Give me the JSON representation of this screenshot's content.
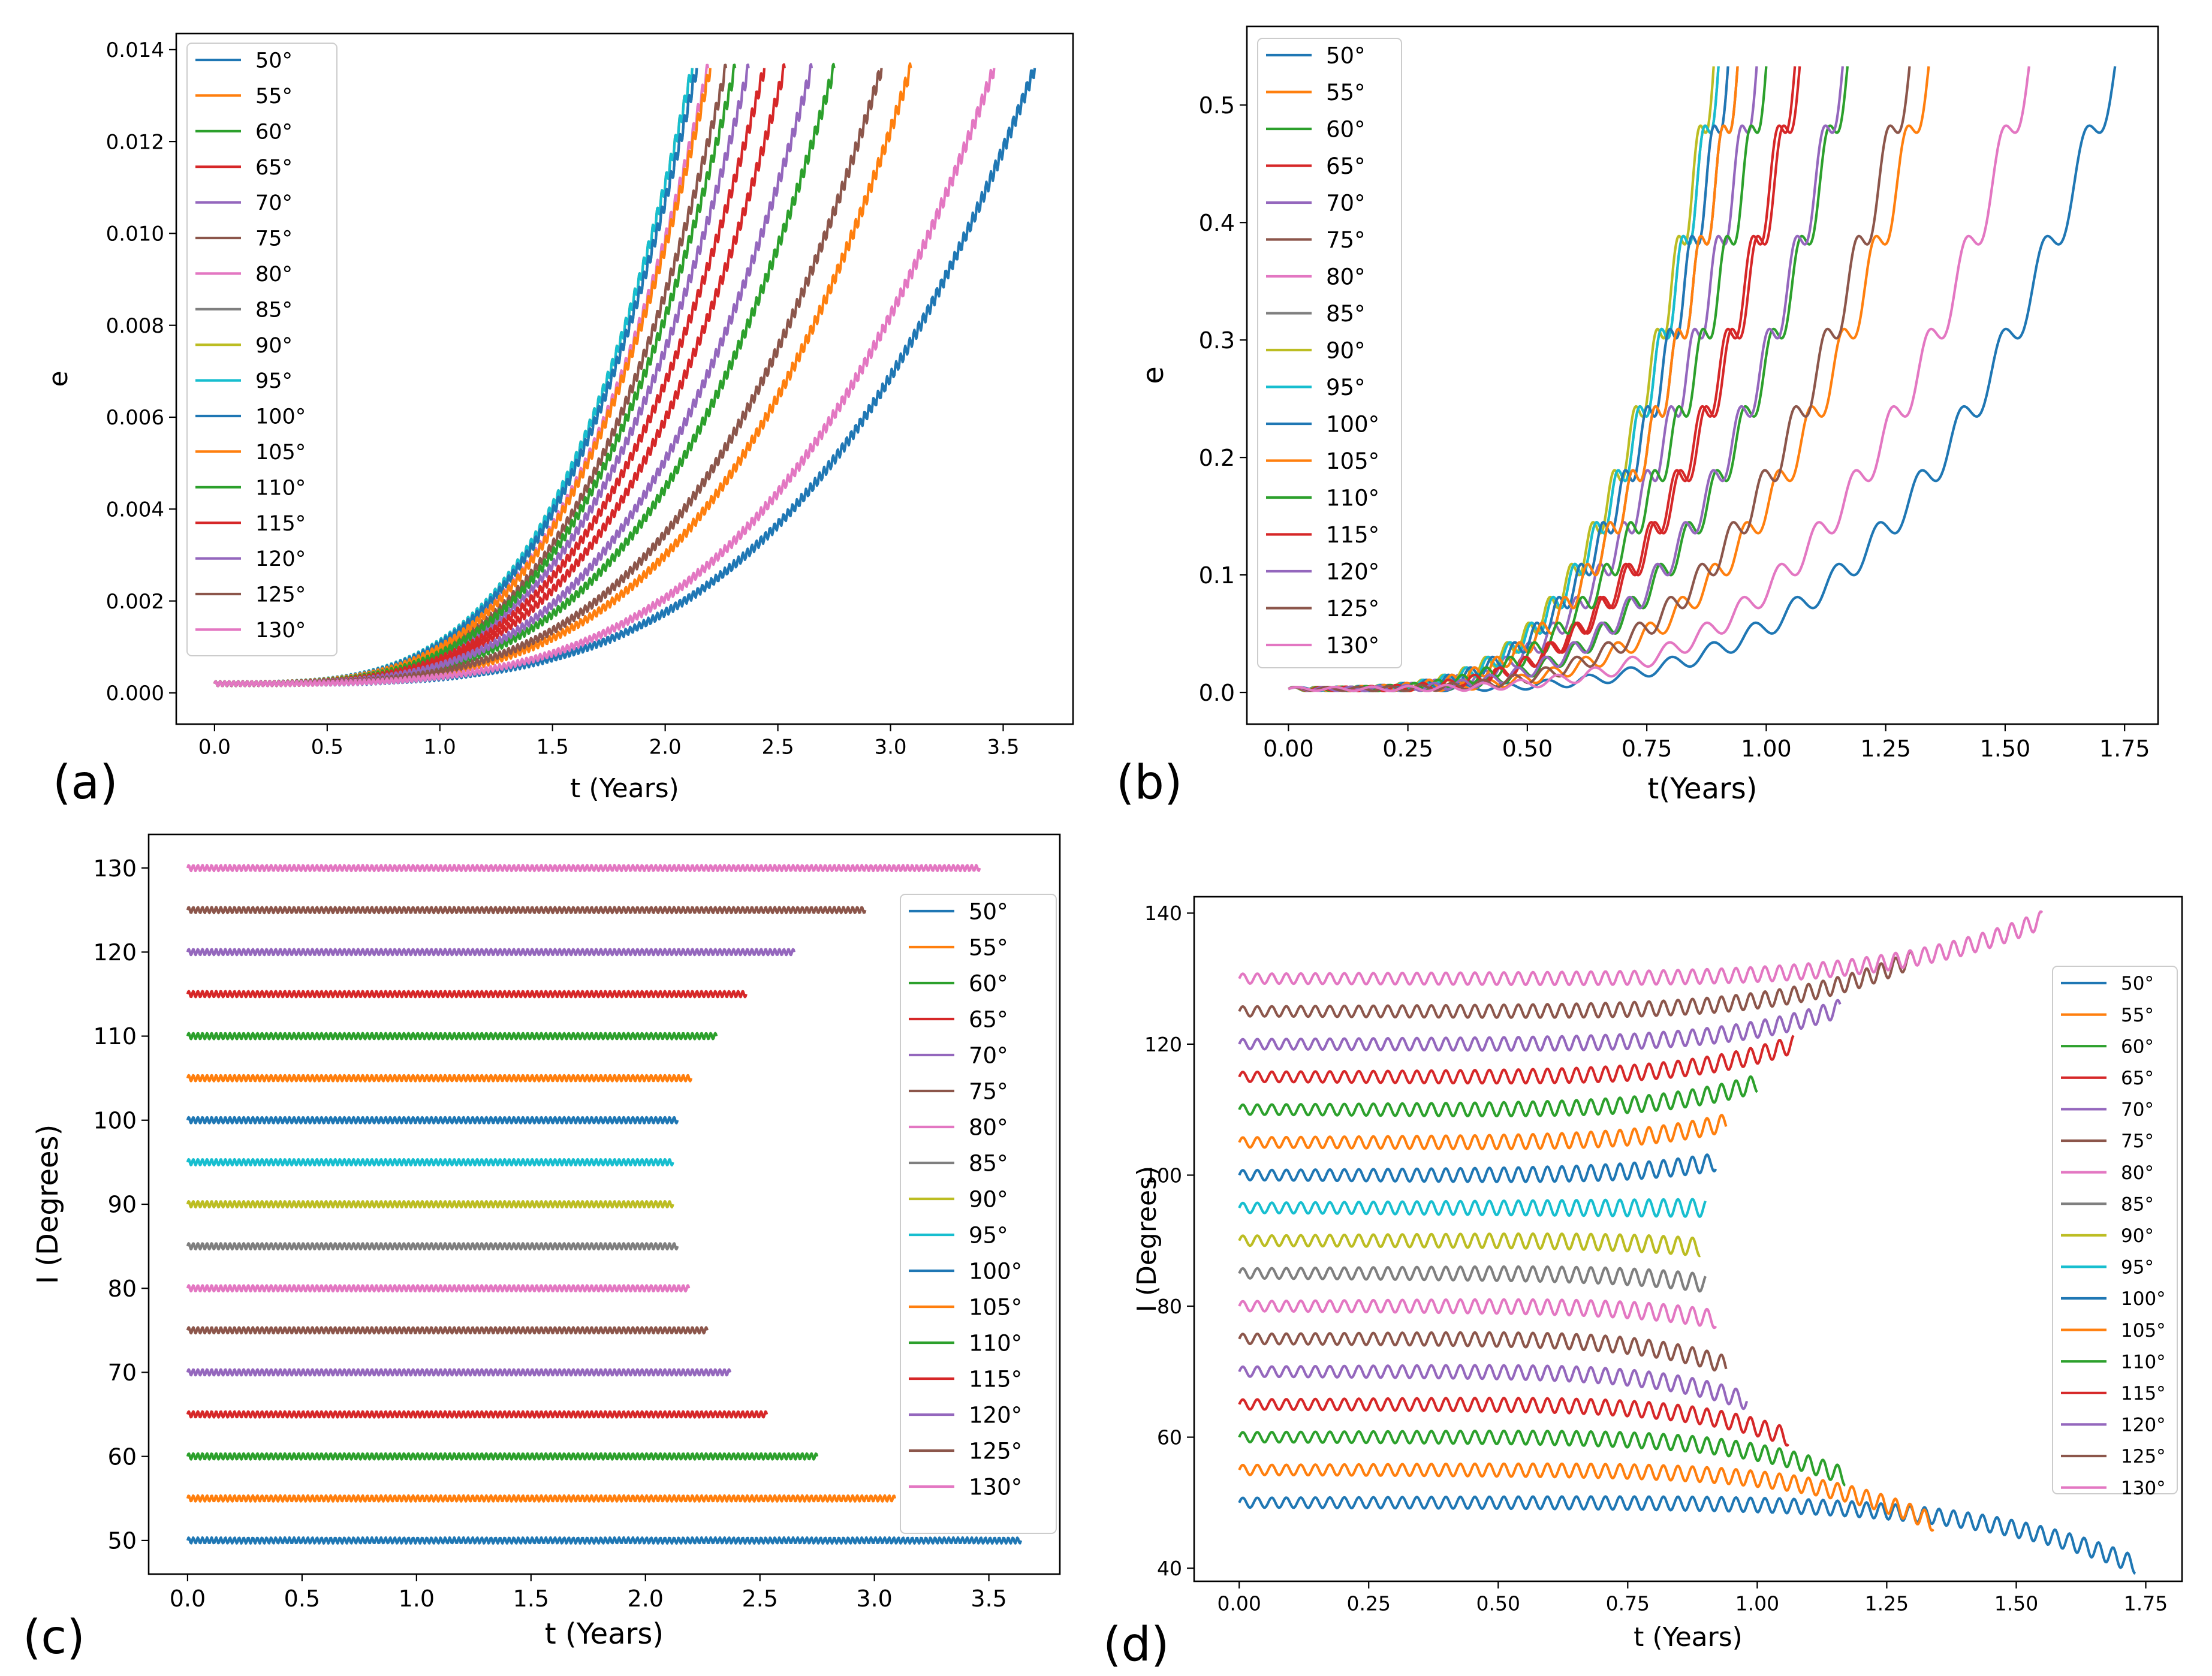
{
  "legend_labels": [
    "50°",
    "55°",
    "60°",
    "65°",
    "70°",
    "75°",
    "80°",
    "85°",
    "90°",
    "95°",
    "100°",
    "105°",
    "110°",
    "115°",
    "120°",
    "125°",
    "130°"
  ],
  "colors": [
    "#1f77b4",
    "#ff7f0e",
    "#2ca02c",
    "#d62728",
    "#9467bd",
    "#8c564b",
    "#e377c2",
    "#7f7f7f",
    "#bcbd22",
    "#17becf"
  ],
  "chart_data": [
    {
      "panel": "(a)",
      "type": "line",
      "title": "",
      "xlabel": "t (Years)",
      "ylabel": "e",
      "xlim": [
        -0.17,
        3.81
      ],
      "ylim": [
        -0.00068,
        0.01435
      ],
      "xticks": [
        0.0,
        0.5,
        1.0,
        1.5,
        2.0,
        2.5,
        3.0,
        3.5
      ],
      "xtick_labels": [
        "0.0",
        "0.5",
        "1.0",
        "1.5",
        "2.0",
        "2.5",
        "3.0",
        "3.5"
      ],
      "yticks": [
        0.0,
        0.002,
        0.004,
        0.006,
        0.008,
        0.01,
        0.012,
        0.014
      ],
      "ytick_labels": [
        "0.000",
        "0.002",
        "0.004",
        "0.006",
        "0.008",
        "0.010",
        "0.012",
        "0.014"
      ],
      "legend_position": "upper-left",
      "series_model": "e(t) = 0.0002 + 0.0134 * (t/t_end)^3.6",
      "e_end": 0.0136,
      "series": [
        {
          "name": "50°",
          "t_end": 3.64
        },
        {
          "name": "55°",
          "t_end": 3.09
        },
        {
          "name": "60°",
          "t_end": 2.75
        },
        {
          "name": "65°",
          "t_end": 2.53
        },
        {
          "name": "70°",
          "t_end": 2.37
        },
        {
          "name": "75°",
          "t_end": 2.27
        },
        {
          "name": "80°",
          "t_end": 2.19
        },
        {
          "name": "85°",
          "t_end": 2.14
        },
        {
          "name": "90°",
          "t_end": 2.12
        },
        {
          "name": "95°",
          "t_end": 2.12
        },
        {
          "name": "100°",
          "t_end": 2.14
        },
        {
          "name": "105°",
          "t_end": 2.2
        },
        {
          "name": "110°",
          "t_end": 2.31
        },
        {
          "name": "115°",
          "t_end": 2.44
        },
        {
          "name": "120°",
          "t_end": 2.65
        },
        {
          "name": "125°",
          "t_end": 2.96
        },
        {
          "name": "130°",
          "t_end": 3.46
        }
      ]
    },
    {
      "panel": "(b)",
      "type": "line",
      "title": "",
      "xlabel": "t(Years)",
      "ylabel": "e",
      "xlim": [
        -0.087,
        1.82
      ],
      "ylim": [
        -0.027,
        0.567
      ],
      "xticks": [
        0.0,
        0.25,
        0.5,
        0.75,
        1.0,
        1.25,
        1.5,
        1.75
      ],
      "xtick_labels": [
        "0.00",
        "0.25",
        "0.50",
        "0.75",
        "1.00",
        "1.25",
        "1.50",
        "1.75"
      ],
      "yticks": [
        0.0,
        0.1,
        0.2,
        0.3,
        0.4,
        0.5
      ],
      "ytick_labels": [
        "0.0",
        "0.1",
        "0.2",
        "0.3",
        "0.4",
        "0.5"
      ],
      "legend_position": "upper-left",
      "series_model": "e(t) = 0.53 * (t/t_end)^4.2 + oscillation",
      "e_end": 0.53,
      "series": [
        {
          "name": "50°",
          "t_end": 1.73
        },
        {
          "name": "55°",
          "t_end": 1.34
        },
        {
          "name": "60°",
          "t_end": 1.17
        },
        {
          "name": "65°",
          "t_end": 1.06
        },
        {
          "name": "70°",
          "t_end": 0.98
        },
        {
          "name": "75°",
          "t_end": 0.94
        },
        {
          "name": "80°",
          "t_end": 0.92
        },
        {
          "name": "85°",
          "t_end": 0.9
        },
        {
          "name": "90°",
          "t_end": 0.89
        },
        {
          "name": "95°",
          "t_end": 0.9
        },
        {
          "name": "100°",
          "t_end": 0.92
        },
        {
          "name": "105°",
          "t_end": 0.94
        },
        {
          "name": "110°",
          "t_end": 1.0
        },
        {
          "name": "115°",
          "t_end": 1.07
        },
        {
          "name": "120°",
          "t_end": 1.16
        },
        {
          "name": "125°",
          "t_end": 1.3
        },
        {
          "name": "130°",
          "t_end": 1.55
        }
      ]
    },
    {
      "panel": "(c)",
      "type": "line",
      "title": "",
      "xlabel": "t (Years)",
      "ylabel": "I (Degrees)",
      "xlim": [
        -0.17,
        3.81
      ],
      "ylim": [
        46.0,
        134.0
      ],
      "xticks": [
        0.0,
        0.5,
        1.0,
        1.5,
        2.0,
        2.5,
        3.0,
        3.5
      ],
      "xtick_labels": [
        "0.0",
        "0.5",
        "1.0",
        "1.5",
        "2.0",
        "2.5",
        "3.0",
        "3.5"
      ],
      "yticks": [
        50,
        60,
        70,
        80,
        90,
        100,
        110,
        120,
        130
      ],
      "ytick_labels": [
        "50",
        "60",
        "70",
        "80",
        "90",
        "100",
        "110",
        "120",
        "130"
      ],
      "legend_position": "upper-right",
      "series_model": "I(t) = I0 (constant)",
      "series": [
        {
          "name": "50°",
          "i0": 50,
          "t_end": 3.64
        },
        {
          "name": "55°",
          "i0": 55,
          "t_end": 3.09
        },
        {
          "name": "60°",
          "i0": 60,
          "t_end": 2.75
        },
        {
          "name": "65°",
          "i0": 65,
          "t_end": 2.53
        },
        {
          "name": "70°",
          "i0": 70,
          "t_end": 2.37
        },
        {
          "name": "75°",
          "i0": 75,
          "t_end": 2.27
        },
        {
          "name": "80°",
          "i0": 80,
          "t_end": 2.19
        },
        {
          "name": "85°",
          "i0": 85,
          "t_end": 2.14
        },
        {
          "name": "90°",
          "i0": 90,
          "t_end": 2.12
        },
        {
          "name": "95°",
          "i0": 95,
          "t_end": 2.12
        },
        {
          "name": "100°",
          "i0": 100,
          "t_end": 2.14
        },
        {
          "name": "105°",
          "i0": 105,
          "t_end": 2.2
        },
        {
          "name": "110°",
          "i0": 110,
          "t_end": 2.31
        },
        {
          "name": "115°",
          "i0": 115,
          "t_end": 2.44
        },
        {
          "name": "120°",
          "i0": 120,
          "t_end": 2.65
        },
        {
          "name": "125°",
          "i0": 125,
          "t_end": 2.96
        },
        {
          "name": "130°",
          "i0": 130,
          "t_end": 3.46
        }
      ]
    },
    {
      "panel": "(d)",
      "type": "line",
      "title": "",
      "xlabel": "t (Years)",
      "ylabel": "I (Degrees)",
      "xlim": [
        -0.087,
        1.82
      ],
      "ylim": [
        38.0,
        142.5
      ],
      "xticks": [
        0.0,
        0.25,
        0.5,
        0.75,
        1.0,
        1.25,
        1.5,
        1.75
      ],
      "xtick_labels": [
        "0.00",
        "0.25",
        "0.50",
        "0.75",
        "1.00",
        "1.25",
        "1.50",
        "1.75"
      ],
      "yticks": [
        40,
        60,
        80,
        100,
        120,
        140
      ],
      "ytick_labels": [
        "40",
        "60",
        "80",
        "100",
        "120",
        "140"
      ],
      "legend_position": "right",
      "series_model": "I(t) = I0 + oscillation, drifting to I_end near t_end",
      "series": [
        {
          "name": "50°",
          "i0": 50,
          "t_end": 1.73,
          "i_end": 40.5
        },
        {
          "name": "55°",
          "i0": 55,
          "t_end": 1.34,
          "i_end": 47.0
        },
        {
          "name": "60°",
          "i0": 60,
          "t_end": 1.17,
          "i_end": 54.0
        },
        {
          "name": "65°",
          "i0": 65,
          "t_end": 1.06,
          "i_end": 60.0
        },
        {
          "name": "70°",
          "i0": 70,
          "t_end": 0.98,
          "i_end": 65.5
        },
        {
          "name": "75°",
          "i0": 75,
          "t_end": 0.94,
          "i_end": 71.0
        },
        {
          "name": "80°",
          "i0": 80,
          "t_end": 0.92,
          "i_end": 78.0
        },
        {
          "name": "85°",
          "i0": 85,
          "t_end": 0.9,
          "i_end": 83.5
        },
        {
          "name": "90°",
          "i0": 90,
          "t_end": 0.89,
          "i_end": 89.0
        },
        {
          "name": "95°",
          "i0": 95,
          "t_end": 0.9,
          "i_end": 95.0
        },
        {
          "name": "100°",
          "i0": 100,
          "t_end": 0.92,
          "i_end": 102.0
        },
        {
          "name": "105°",
          "i0": 105,
          "t_end": 0.94,
          "i_end": 108.0
        },
        {
          "name": "110°",
          "i0": 110,
          "t_end": 1.0,
          "i_end": 114.0
        },
        {
          "name": "115°",
          "i0": 115,
          "t_end": 1.07,
          "i_end": 120.0
        },
        {
          "name": "120°",
          "i0": 120,
          "t_end": 1.16,
          "i_end": 125.5
        },
        {
          "name": "125°",
          "i0": 125,
          "t_end": 1.3,
          "i_end": 133.0
        },
        {
          "name": "130°",
          "i0": 130,
          "t_end": 1.55,
          "i_end": 139.0
        }
      ]
    }
  ]
}
